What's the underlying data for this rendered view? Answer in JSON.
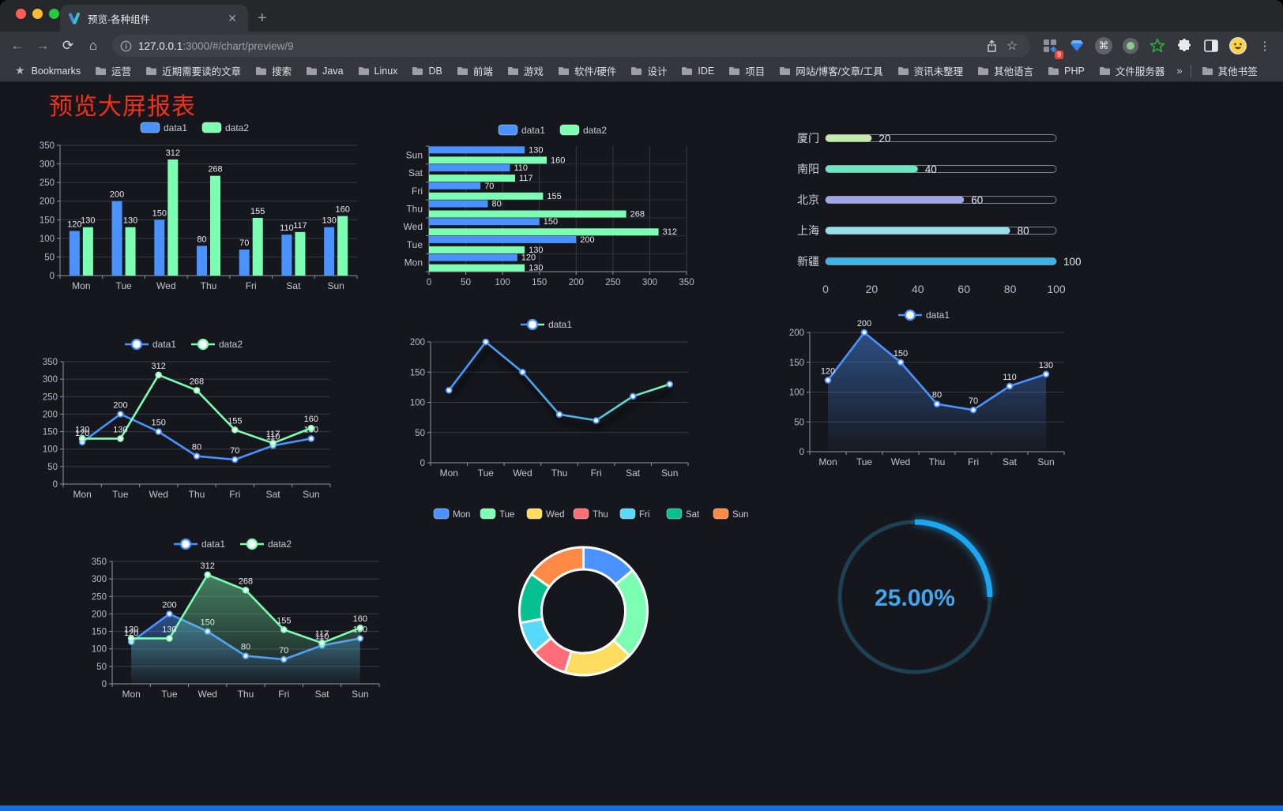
{
  "browser": {
    "traffic_lights": [
      "#ff5f57",
      "#febc2e",
      "#28c840"
    ],
    "tab": {
      "title": "预览-各种组件",
      "close_label": "✕"
    },
    "new_tab_label": "+",
    "url": {
      "host": "127.0.0.1",
      "rest": ":3000/#/chart/preview/9"
    },
    "badge_count": "9",
    "bookmarks": {
      "label": "Bookmarks",
      "items": [
        "运营",
        "近期需要读的文章",
        "搜索",
        "Java",
        "Linux",
        "DB",
        "前端",
        "游戏",
        "软件/硬件",
        "设计",
        "IDE",
        "项目",
        "网站/博客/文章/工具",
        "资讯未整理",
        "其他语言",
        "PHP",
        "文件服务器"
      ],
      "overflow": "»",
      "other": "其他书签"
    }
  },
  "page": {
    "title": "预览大屏报表",
    "title_color": "#f43019",
    "background": "#16171d"
  },
  "chart_data": [
    {
      "type": "bar",
      "categories": [
        "Mon",
        "Tue",
        "Wed",
        "Thu",
        "Fri",
        "Sat",
        "Sun"
      ],
      "series": [
        {
          "name": "data1",
          "color": "#4992ff",
          "values": [
            120,
            200,
            150,
            80,
            70,
            110,
            130
          ]
        },
        {
          "name": "data2",
          "color": "#7cffb2",
          "values": [
            130,
            130,
            312,
            268,
            155,
            117,
            160
          ]
        }
      ],
      "ylim": [
        0,
        350
      ],
      "yticks": [
        0,
        50,
        100,
        150,
        200,
        250,
        300,
        350
      ],
      "legend": "top",
      "labels": true
    },
    {
      "type": "hbar",
      "categories": [
        "Mon",
        "Tue",
        "Wed",
        "Thu",
        "Fri",
        "Sat",
        "Sun"
      ],
      "series": [
        {
          "name": "data1",
          "color": "#4992ff",
          "values": [
            120,
            200,
            150,
            80,
            70,
            110,
            130
          ]
        },
        {
          "name": "data2",
          "color": "#7cffb2",
          "values": [
            130,
            130,
            312,
            268,
            155,
            117,
            160
          ]
        }
      ],
      "xlim": [
        0,
        350
      ],
      "xticks": [
        0,
        50,
        100,
        150,
        200,
        250,
        300,
        350
      ],
      "legend": "top",
      "labels": true
    },
    {
      "type": "progress",
      "rows": [
        {
          "label": "厦门",
          "value": 20,
          "color": "#c4ebad"
        },
        {
          "label": "南阳",
          "value": 40,
          "color": "#6be6c1"
        },
        {
          "label": "北京",
          "value": 60,
          "color": "#a0a7e6"
        },
        {
          "label": "上海",
          "value": 80,
          "color": "#96dee8"
        },
        {
          "label": "新疆",
          "value": 100,
          "color": "#3fb1e3"
        }
      ],
      "max": 100,
      "xticks": [
        0,
        20,
        40,
        60,
        80,
        100
      ]
    },
    {
      "type": "line",
      "categories": [
        "Mon",
        "Tue",
        "Wed",
        "Thu",
        "Fri",
        "Sat",
        "Sun"
      ],
      "series": [
        {
          "name": "data1",
          "color": "#4992ff",
          "values": [
            120,
            200,
            150,
            80,
            70,
            110,
            130
          ]
        },
        {
          "name": "data2",
          "color": "#7cffb2",
          "values": [
            130,
            130,
            312,
            268,
            155,
            117,
            160
          ]
        }
      ],
      "ylim": [
        0,
        350
      ],
      "yticks": [
        0,
        50,
        100,
        150,
        200,
        250,
        300,
        350
      ],
      "legend": "top",
      "labels": true,
      "markers": true
    },
    {
      "type": "line",
      "categories": [
        "Mon",
        "Tue",
        "Wed",
        "Thu",
        "Fri",
        "Sat",
        "Sun"
      ],
      "series": [
        {
          "name": "data1",
          "color": "#4992ff",
          "color2": "#7cffb2",
          "values": [
            120,
            200,
            150,
            80,
            70,
            110,
            130
          ]
        }
      ],
      "ylim": [
        0,
        200
      ],
      "yticks": [
        0,
        50,
        100,
        150,
        200
      ],
      "legend": "top",
      "labels": false,
      "markers": true,
      "shadow": true
    },
    {
      "type": "line",
      "categories": [
        "Mon",
        "Tue",
        "Wed",
        "Thu",
        "Fri",
        "Sat",
        "Sun"
      ],
      "series": [
        {
          "name": "data1",
          "color": "#4992ff",
          "area": true,
          "values": [
            120,
            200,
            150,
            80,
            70,
            110,
            130
          ]
        }
      ],
      "ylim": [
        0,
        200
      ],
      "yticks": [
        0,
        50,
        100,
        150,
        200
      ],
      "legend": "top",
      "labels": true,
      "markers": true
    },
    {
      "type": "line",
      "categories": [
        "Mon",
        "Tue",
        "Wed",
        "Thu",
        "Fri",
        "Sat",
        "Sun"
      ],
      "series": [
        {
          "name": "data1",
          "color": "#4992ff",
          "area": true,
          "values": [
            120,
            200,
            150,
            80,
            70,
            110,
            130
          ]
        },
        {
          "name": "data2",
          "color": "#7cffb2",
          "area": true,
          "values": [
            130,
            130,
            312,
            268,
            155,
            117,
            160
          ]
        }
      ],
      "ylim": [
        0,
        350
      ],
      "yticks": [
        0,
        50,
        100,
        150,
        200,
        250,
        300,
        350
      ],
      "legend": "top",
      "labels": true,
      "markers": true
    },
    {
      "type": "pie",
      "items": [
        {
          "label": "Mon",
          "value": 120,
          "color": "#4992ff"
        },
        {
          "label": "Tue",
          "value": 200,
          "color": "#7cffb2"
        },
        {
          "label": "Wed",
          "value": 150,
          "color": "#fddd60"
        },
        {
          "label": "Thu",
          "value": 80,
          "color": "#ff6e76"
        },
        {
          "label": "Fri",
          "value": 70,
          "color": "#58d9f9"
        },
        {
          "label": "Sat",
          "value": 110,
          "color": "#05c091"
        },
        {
          "label": "Sun",
          "value": 130,
          "color": "#ff8a45"
        }
      ],
      "donut": true,
      "legend": "top"
    },
    {
      "type": "gauge",
      "value": 25,
      "label": "25.00%",
      "color": "#1ba7f2",
      "track_color": "#1d4152",
      "text_color": "#42a5ef"
    }
  ]
}
